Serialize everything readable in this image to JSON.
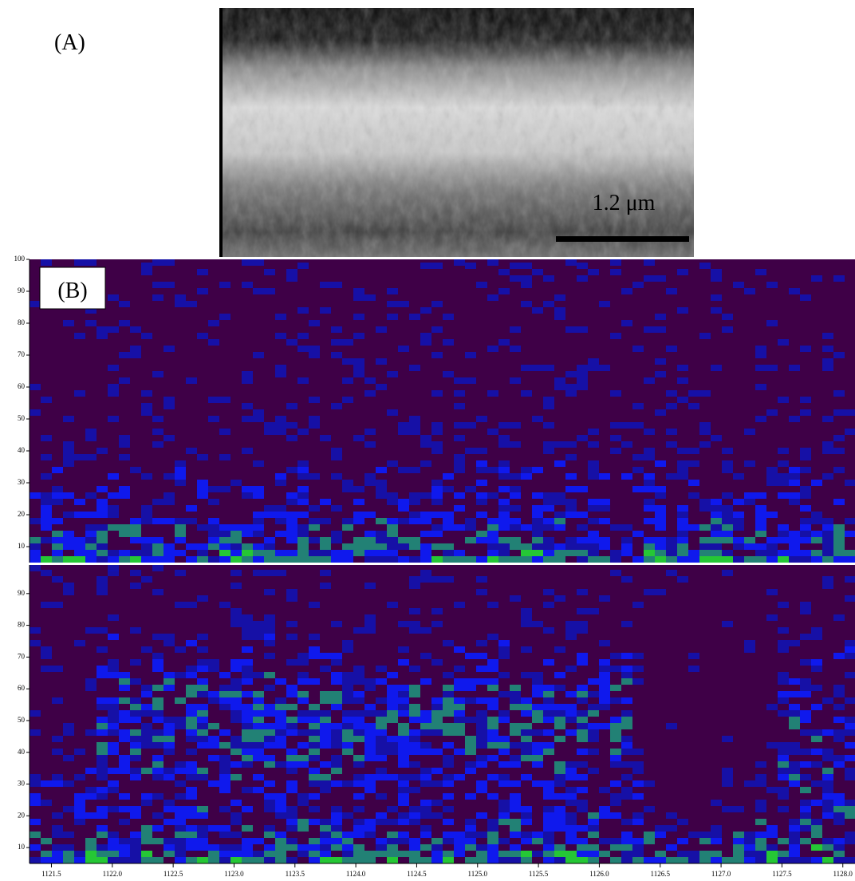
{
  "panel_a": {
    "label": "(A)",
    "scale_bar_label": "1.2 μm"
  },
  "panel_b": {
    "label": "(B)",
    "xlim": [
      1121.32,
      1128.1
    ],
    "xticks": [
      1121.5,
      {
        "value": 1122.0,
        "label": "1122.0"
      },
      1122.5,
      {
        "value": 1123.0,
        "label": "1123.0"
      },
      1123.5,
      {
        "value": 1124.0,
        "label": "1124.0"
      },
      1124.5,
      {
        "value": 1125.0,
        "label": "1125.0"
      },
      1125.5,
      {
        "value": 1126.0,
        "label": "1126.0"
      },
      1126.5,
      {
        "value": 1127.0,
        "label": "1127.0"
      },
      1127.5,
      {
        "value": 1128.0,
        "label": "1128.0"
      }
    ],
    "top": {
      "ylim": [
        5,
        100
      ],
      "yticks": [
        10,
        20,
        30,
        40,
        50,
        60,
        70,
        80,
        90,
        100
      ]
    },
    "bottom": {
      "ylim": [
        5,
        99
      ],
      "yticks": [
        10,
        20,
        30,
        40,
        50,
        60,
        70,
        80,
        90
      ]
    }
  }
}
